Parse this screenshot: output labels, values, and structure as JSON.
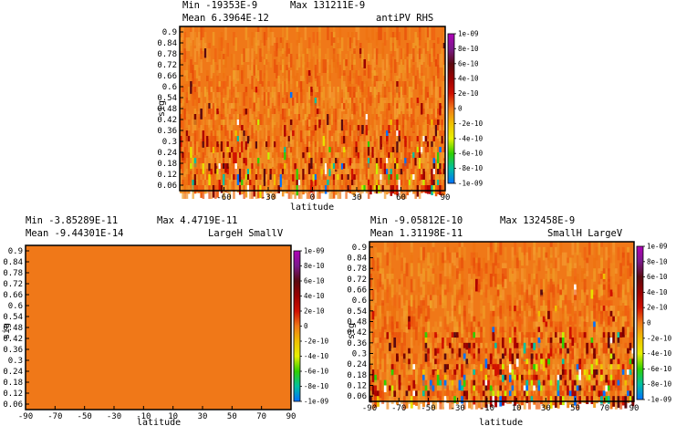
{
  "chart_data": [
    {
      "type": "heatmap",
      "stats": {
        "min": "Min -19353E-9",
        "max": "Max 131211E-9",
        "mean": "Mean 6.3964E-12"
      },
      "title": "antiPV RHS",
      "xlabel": "latitude",
      "ylabel": "sig",
      "xlim": [
        -90,
        90
      ],
      "ylim": [
        0.03,
        0.93
      ],
      "xticks": [
        "-60",
        "-30",
        "0",
        "30",
        "60",
        "90"
      ],
      "xtick_values": [
        -60,
        -30,
        0,
        30,
        60,
        90
      ],
      "yticks": [
        "0.9",
        "0.84",
        "0.78",
        "0.72",
        "0.66",
        "0.6",
        "0.54",
        "0.48",
        "0.42",
        "0.36",
        "0.3",
        "0.24",
        "0.18",
        "0.12",
        "0.06"
      ],
      "ytick_values": [
        0.9,
        0.84,
        0.78,
        0.72,
        0.66,
        0.6,
        0.54,
        0.48,
        0.42,
        0.36,
        0.3,
        0.24,
        0.18,
        0.12,
        0.06
      ],
      "intensity": "strong"
    },
    {
      "type": "heatmap",
      "stats": {
        "min": "Min -3.85289E-11",
        "max": "Max 4.4719E-11",
        "mean": "Mean -9.44301E-14"
      },
      "title": "LargeH SmallV",
      "xlabel": "latitude",
      "ylabel": "sig",
      "xlim": [
        -90,
        90
      ],
      "ylim": [
        0.03,
        0.93
      ],
      "xticks": [
        "-90",
        "-70",
        "-50",
        "-30",
        "-10",
        "10",
        "30",
        "50",
        "70",
        "90"
      ],
      "xtick_values": [
        -90,
        -70,
        -50,
        -30,
        -10,
        10,
        30,
        50,
        70,
        90
      ],
      "yticks": [
        "0.9",
        "0.84",
        "0.78",
        "0.72",
        "0.66",
        "0.6",
        "0.54",
        "0.48",
        "0.42",
        "0.36",
        "0.3",
        "0.24",
        "0.18",
        "0.12",
        "0.06"
      ],
      "ytick_values": [
        0.9,
        0.84,
        0.78,
        0.72,
        0.66,
        0.6,
        0.54,
        0.48,
        0.42,
        0.36,
        0.3,
        0.24,
        0.18,
        0.12,
        0.06
      ],
      "intensity": "flat"
    },
    {
      "type": "heatmap",
      "stats": {
        "min": "Min -9.05812E-10",
        "max": "Max 132458E-9",
        "mean": "Mean 1.31198E-11"
      },
      "title": "SmallH LargeV",
      "xlabel": "latitude",
      "ylabel": "sig",
      "xlim": [
        -90,
        90
      ],
      "ylim": [
        0.03,
        0.93
      ],
      "xticks": [
        "-90",
        "-70",
        "-50",
        "-30",
        "-10",
        "10",
        "30",
        "50",
        "70",
        "90"
      ],
      "xtick_values": [
        -90,
        -70,
        -50,
        -30,
        -10,
        10,
        30,
        50,
        70,
        90
      ],
      "yticks": [
        "0.9",
        "0.84",
        "0.78",
        "0.72",
        "0.66",
        "0.6",
        "0.54",
        "0.48",
        "0.42",
        "0.36",
        "0.3",
        "0.24",
        "0.18",
        "0.12",
        "0.06"
      ],
      "ytick_values": [
        0.9,
        0.84,
        0.78,
        0.72,
        0.66,
        0.6,
        0.54,
        0.48,
        0.42,
        0.36,
        0.3,
        0.24,
        0.18,
        0.12,
        0.06
      ],
      "intensity": "medium"
    }
  ],
  "colorbar": {
    "labels": [
      "1e-09",
      "8e-10",
      "6e-10",
      "4e-10",
      "2e-10",
      "0",
      "-2e-10",
      "-4e-10",
      "-6e-10",
      "-8e-10",
      "-1e-09"
    ],
    "colors": [
      "#b000b8",
      "#7a1a8a",
      "#5a0a10",
      "#9a0000",
      "#d01000",
      "#f07818",
      "#f0c000",
      "#e8f000",
      "#30d000",
      "#00c0a0",
      "#0070ff"
    ]
  }
}
